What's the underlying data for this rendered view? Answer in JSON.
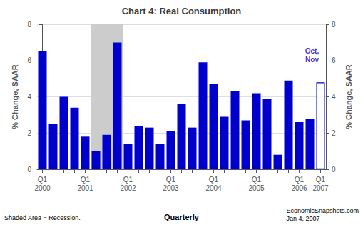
{
  "chart_data": {
    "type": "bar",
    "title": "Chart 4: Real Consumption",
    "ylabel": "% Change, SAAR",
    "y2label": "% Change, SAAR",
    "xlabel": "Quarterly",
    "footnote_left": "Shaded Area = Recession.",
    "footnote_right": "EconomicSnapshots.com\nJan 4, 2007",
    "categories": [
      "Q1\n2000",
      null,
      null,
      null,
      "Q1\n2001",
      null,
      null,
      null,
      "Q1\n2002",
      null,
      null,
      null,
      "Q1\n2003",
      null,
      null,
      null,
      "Q1\n2004",
      null,
      null,
      null,
      "Q1\n2005",
      null,
      null,
      null,
      "Q1\n2006",
      null,
      "Q1\n2007"
    ],
    "values": [
      6.5,
      2.5,
      4.0,
      3.4,
      1.8,
      1.0,
      1.9,
      7.0,
      1.4,
      2.4,
      2.3,
      1.4,
      2.1,
      3.6,
      2.3,
      5.9,
      4.7,
      2.9,
      4.3,
      2.7,
      4.2,
      3.9,
      0.8,
      4.9,
      2.6,
      2.8,
      4.8
    ],
    "color": "#0000cc",
    "colors": [
      "#0000cc",
      "#0000cc",
      "#0000cc",
      "#0000cc",
      "#0000cc",
      "#0000cc",
      "#0000cc",
      "#0000cc",
      "#0000cc",
      "#0000cc",
      "#0000cc",
      "#0000cc",
      "#0000cc",
      "#0000cc",
      "#0000cc",
      "#0000cc",
      "#0000cc",
      "#0000cc",
      "#0000cc",
      "#0000cc",
      "#0000cc",
      "#0000cc",
      "#0000cc",
      "#0000cc",
      "#0000cc",
      "#0000cc",
      "#ffffff"
    ],
    "shaded": {
      "from": 4.5,
      "to": 7.5,
      "color": "#cccccc"
    },
    "annotation": {
      "text": "Oct,\nNov",
      "x": 25.2,
      "y": 6.3,
      "color": "#0000cc"
    },
    "ylim": [
      0,
      8
    ],
    "yticks": [
      0,
      2,
      4,
      6,
      8
    ],
    "y2lim": [
      0,
      8
    ],
    "y2ticks": [
      0,
      2,
      4,
      6,
      8
    ],
    "grid": true
  }
}
